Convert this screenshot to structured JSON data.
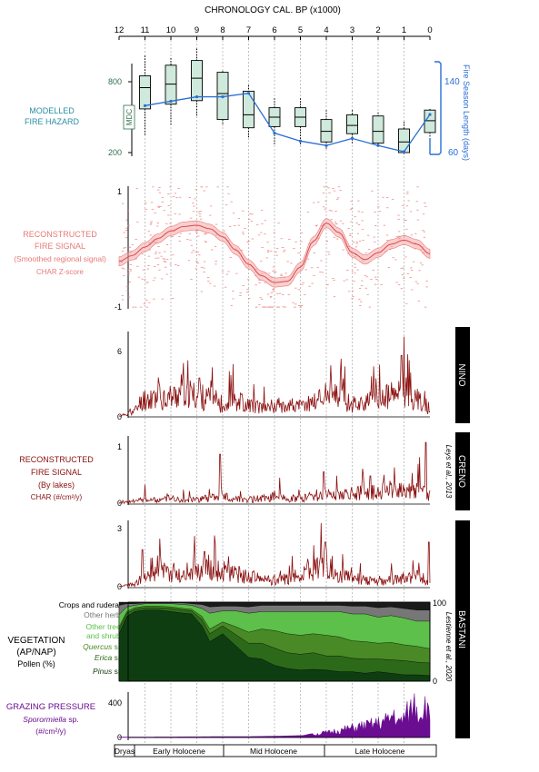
{
  "figure": {
    "top_axis_title": "CHRONOLOGY CAL. BP (x1000)",
    "top_ticks": [
      "12",
      "11",
      "10",
      "9",
      "8",
      "7",
      "6",
      "5",
      "4",
      "3",
      "2",
      "1",
      "0"
    ],
    "grid_ka": [
      11,
      10,
      9,
      8,
      7,
      6,
      5,
      4,
      3,
      2,
      1
    ],
    "colors": {
      "green_axis": "#2f6f4f",
      "blue": "#2a6fd6",
      "pink": "#e87a7a",
      "darkred": "#8b1010",
      "purple": "#6a0d91",
      "box_fill": "#cfe9dc"
    }
  },
  "panels": {
    "hazard": {
      "label_lines": [
        "MODELLED",
        "FIRE HAZARD"
      ],
      "mdc_tag": "MDC",
      "left_ticks": [
        "800",
        "200"
      ],
      "right_ticks": [
        "140",
        "60"
      ],
      "right_axis_title": "Fire Season Length (days)"
    },
    "regional": {
      "label_lines": [
        "RECONSTRUCTED",
        "FIRE SIGNAL",
        "(Smoothed regional signal)"
      ],
      "sub": "CHAR Z-score",
      "ticks": [
        "1",
        "-1"
      ]
    },
    "lakes": {
      "label_lines": [
        "RECONSTRUCTED",
        "FIRE SIGNAL",
        "(By lakes)"
      ],
      "sub": "CHAR (#/cm²/y)",
      "names": [
        "NINO",
        "CRENO",
        "BASTANI"
      ],
      "refs": [
        "Leys et al., 2013",
        "Lestienne et al., 2020"
      ],
      "nino_ticks": [
        "6",
        "0"
      ],
      "creno_ticks": [
        "1",
        "0"
      ],
      "bastani_ticks": [
        "3",
        "0"
      ]
    },
    "vegetation": {
      "title": "VEGETATION",
      "sub1": "(AP/NAP)",
      "sub2": "Pollen (%)",
      "right_ticks": [
        "100",
        "0"
      ],
      "legend": {
        "crops": "Crops and ruderals",
        "herbs": "Other herbs",
        "trees_l1": "Other trees",
        "trees_l2": "and shrubs",
        "quercus": "Quercus",
        "erica": "Erica",
        "pinus": "Pinus",
        "sp": " sp."
      }
    },
    "grazing": {
      "title": "GRAZING PRESSURE",
      "species": "Sporormiella",
      "sp": " sp.",
      "unit": "(#/cm²/y)",
      "ticks": [
        "400",
        "0"
      ]
    },
    "periods": [
      "Dryas",
      "Early Holocene",
      "Mid Holocene",
      "Late Holocene"
    ]
  },
  "chart_data": [
    {
      "type": "box",
      "title": "MODELLED FIRE HAZARD",
      "ylabel": "MDC",
      "x": [
        11,
        10,
        9,
        8,
        7,
        6,
        5,
        4,
        3,
        2,
        1,
        0
      ],
      "boxes": [
        {
          "min": 350,
          "q1": 570,
          "median": 750,
          "q3": 850,
          "max": 1020
        },
        {
          "min": 430,
          "q1": 610,
          "median": 780,
          "q3": 940,
          "max": 1000
        },
        {
          "min": 510,
          "q1": 640,
          "median": 830,
          "q3": 980,
          "max": 1080
        },
        {
          "min": 430,
          "q1": 480,
          "median": 700,
          "q3": 880,
          "max": 890
        },
        {
          "min": 330,
          "q1": 410,
          "median": 520,
          "q3": 720,
          "max": 770
        },
        {
          "min": 270,
          "q1": 420,
          "median": 500,
          "q3": 580,
          "max": 660
        },
        {
          "min": 270,
          "q1": 420,
          "median": 500,
          "q3": 580,
          "max": 660
        },
        {
          "min": 230,
          "q1": 290,
          "median": 380,
          "q3": 480,
          "max": 560
        },
        {
          "min": 280,
          "q1": 360,
          "median": 430,
          "q3": 520,
          "max": 560
        },
        {
          "min": 250,
          "q1": 280,
          "median": 380,
          "q3": 510,
          "max": 540
        },
        {
          "min": 180,
          "q1": 200,
          "median": 290,
          "q3": 400,
          "max": 460
        },
        {
          "min": 330,
          "q1": 370,
          "median": 470,
          "q3": 560,
          "max": 570
        }
      ],
      "line_series": {
        "name": "Fire Season Length (days)",
        "x": [
          11,
          10,
          9,
          8,
          7,
          6,
          5,
          4,
          3,
          2,
          1,
          0
        ],
        "values": [
          113,
          118,
          123,
          123,
          127,
          82,
          73,
          68,
          76,
          68,
          61,
          103
        ]
      },
      "ylim": [
        200,
        1100
      ],
      "y2lim": [
        55,
        150
      ]
    },
    {
      "type": "scatter",
      "title": "RECONSTRUCTED FIRE SIGNAL (Smoothed regional signal)",
      "ylabel": "CHAR Z-score",
      "curve": {
        "x": [
          12,
          11.5,
          11,
          10.5,
          10,
          9.5,
          9,
          8.5,
          8,
          7.5,
          7,
          6.5,
          6,
          5.5,
          5,
          4.5,
          4,
          3.5,
          3,
          2.5,
          2,
          1.5,
          1,
          0.5,
          0
        ],
        "values": [
          -0.25,
          -0.15,
          0.0,
          0.15,
          0.28,
          0.36,
          0.38,
          0.32,
          0.18,
          -0.05,
          -0.3,
          -0.5,
          -0.62,
          -0.6,
          -0.35,
          0.1,
          0.42,
          0.25,
          -0.1,
          -0.22,
          -0.1,
          0.05,
          0.12,
          0.05,
          -0.12
        ]
      },
      "band_halfwidth": 0.08,
      "ylim": [
        -1.15,
        1.15
      ]
    },
    {
      "type": "line",
      "title": "NINO",
      "ylabel": "CHAR (#/cm²/y)",
      "x": [
        12,
        11.5,
        11,
        10.5,
        10,
        9.5,
        9,
        8.5,
        8,
        7.5,
        7,
        6.5,
        6,
        5.5,
        5,
        4.5,
        4,
        3.5,
        3,
        2.5,
        2,
        1.5,
        1,
        0.5,
        0
      ],
      "values": [
        0.1,
        0.5,
        1.9,
        2.2,
        2.1,
        2.7,
        2.2,
        1.9,
        1.3,
        1.8,
        1.3,
        1.0,
        1.2,
        1.3,
        1.1,
        1.6,
        2.4,
        2.0,
        1.4,
        1.5,
        1.8,
        2.2,
        2.8,
        1.8,
        0.5
      ],
      "peaks": [
        {
          "x": 9.6,
          "y": 3.6
        },
        {
          "x": 8.9,
          "y": 3.3
        },
        {
          "x": 8.4,
          "y": 3.0
        },
        {
          "x": 1.1,
          "y": 5.2
        },
        {
          "x": 1.0,
          "y": 6.8
        },
        {
          "x": 0.8,
          "y": 4.8
        },
        {
          "x": 0.2,
          "y": 2.2
        }
      ],
      "ylim": [
        0,
        7
      ]
    },
    {
      "type": "line",
      "title": "CRENO",
      "ylabel": "CHAR (#/cm²/y)",
      "x": [
        12,
        11.5,
        11,
        10.5,
        10,
        9.5,
        9,
        8.5,
        8,
        7.5,
        7,
        6.5,
        6,
        5.5,
        5,
        4.5,
        4,
        3.5,
        3,
        2.5,
        2,
        1.5,
        1,
        0.5,
        0
      ],
      "values": [
        0.02,
        0.05,
        0.1,
        0.08,
        0.12,
        0.1,
        0.1,
        0.13,
        0.15,
        0.12,
        0.1,
        0.12,
        0.15,
        0.13,
        0.12,
        0.18,
        0.22,
        0.2,
        0.22,
        0.25,
        0.28,
        0.3,
        0.32,
        0.3,
        0.2
      ],
      "peaks": [
        {
          "x": 11.0,
          "y": 0.33
        },
        {
          "x": 8.1,
          "y": 0.85
        },
        {
          "x": 5.8,
          "y": 0.45
        },
        {
          "x": 4.1,
          "y": 0.55
        },
        {
          "x": 2.3,
          "y": 0.48
        },
        {
          "x": 0.4,
          "y": 0.8
        },
        {
          "x": 0.15,
          "y": 1.05
        }
      ],
      "ylim": [
        0,
        1.1
      ]
    },
    {
      "type": "line",
      "title": "BASTANI",
      "ylabel": "CHAR (#/cm²/y)",
      "x": [
        12,
        11.5,
        11,
        10.5,
        10,
        9.5,
        9,
        8.5,
        8,
        7.5,
        7,
        6.5,
        6,
        5.5,
        5,
        4.5,
        4,
        3.5,
        3,
        2.5,
        2,
        1.5,
        1,
        0.5,
        0
      ],
      "values": [
        0.05,
        0.2,
        0.6,
        1.1,
        1.0,
        0.8,
        1.1,
        1.3,
        1.1,
        0.9,
        0.7,
        0.6,
        0.5,
        0.6,
        0.8,
        1.2,
        1.6,
        0.9,
        0.7,
        0.5,
        0.4,
        0.5,
        0.6,
        0.7,
        0.5
      ],
      "peaks": [
        {
          "x": 11.1,
          "y": 2.0
        },
        {
          "x": 10.4,
          "y": 1.7
        },
        {
          "x": 9.1,
          "y": 1.8
        },
        {
          "x": 8.7,
          "y": 1.9
        },
        {
          "x": 4.2,
          "y": 3.5
        },
        {
          "x": 4.05,
          "y": 2.4
        },
        {
          "x": 0.05,
          "y": 2.4
        }
      ],
      "ylim": [
        0,
        3.4
      ]
    },
    {
      "type": "area",
      "title": "VEGETATION (AP/NAP)",
      "ylabel": "Pollen (%)",
      "x": [
        12,
        11.7,
        11.4,
        11,
        10.5,
        10,
        9.5,
        9.2,
        8.8,
        8.5,
        8,
        7.5,
        7,
        6.5,
        6,
        5.5,
        5,
        4.5,
        4,
        3.5,
        3,
        2.5,
        2,
        1.5,
        1,
        0.5,
        0
      ],
      "stacked_series": [
        {
          "name": "Pinus",
          "values": [
            60,
            82,
            88,
            90,
            90,
            88,
            86,
            85,
            70,
            50,
            60,
            45,
            30,
            28,
            20,
            16,
            14,
            15,
            14,
            12,
            12,
            10,
            12,
            10,
            8,
            8,
            7
          ]
        },
        {
          "name": "Erica",
          "values": [
            6,
            4,
            3,
            3,
            3,
            4,
            4,
            4,
            8,
            10,
            10,
            14,
            18,
            20,
            22,
            20,
            20,
            21,
            18,
            20,
            17,
            18,
            16,
            17,
            18,
            16,
            16
          ]
        },
        {
          "name": "Quercus",
          "values": [
            3,
            2,
            2,
            2,
            2,
            2,
            2,
            2,
            4,
            6,
            5,
            10,
            14,
            18,
            22,
            24,
            24,
            24,
            26,
            24,
            22,
            22,
            20,
            22,
            20,
            20,
            18
          ]
        },
        {
          "name": "Other trees and shrubs",
          "values": [
            15,
            6,
            3,
            3,
            3,
            4,
            5,
            5,
            10,
            20,
            14,
            20,
            24,
            22,
            24,
            28,
            30,
            28,
            30,
            32,
            34,
            35,
            33,
            34,
            34,
            32,
            35
          ]
        },
        {
          "name": "Other herbs",
          "values": [
            12,
            4,
            2,
            1,
            1,
            1,
            2,
            2,
            5,
            8,
            6,
            6,
            8,
            8,
            8,
            8,
            8,
            8,
            8,
            8,
            10,
            10,
            12,
            11,
            12,
            14,
            14
          ]
        },
        {
          "name": "Crops and ruderals",
          "values": [
            4,
            2,
            2,
            1,
            1,
            1,
            1,
            2,
            3,
            6,
            5,
            5,
            6,
            4,
            4,
            4,
            4,
            4,
            4,
            4,
            5,
            5,
            7,
            6,
            8,
            10,
            10
          ]
        }
      ],
      "ylim": [
        0,
        100
      ]
    },
    {
      "type": "area",
      "title": "GRAZING PRESSURE",
      "ylabel": "Sporormiella sp. (#/cm²/y)",
      "x": [
        12,
        11,
        10,
        9,
        8,
        7,
        6,
        5,
        4.5,
        4,
        3.5,
        3,
        2.5,
        2,
        1.6,
        1.4,
        1.2,
        1.0,
        0.8,
        0.6,
        0.4,
        0.2,
        0
      ],
      "values": [
        5,
        5,
        6,
        8,
        10,
        10,
        14,
        20,
        40,
        60,
        90,
        120,
        150,
        180,
        220,
        300,
        180,
        260,
        330,
        450,
        300,
        420,
        250
      ],
      "ylim": [
        0,
        480
      ]
    }
  ]
}
